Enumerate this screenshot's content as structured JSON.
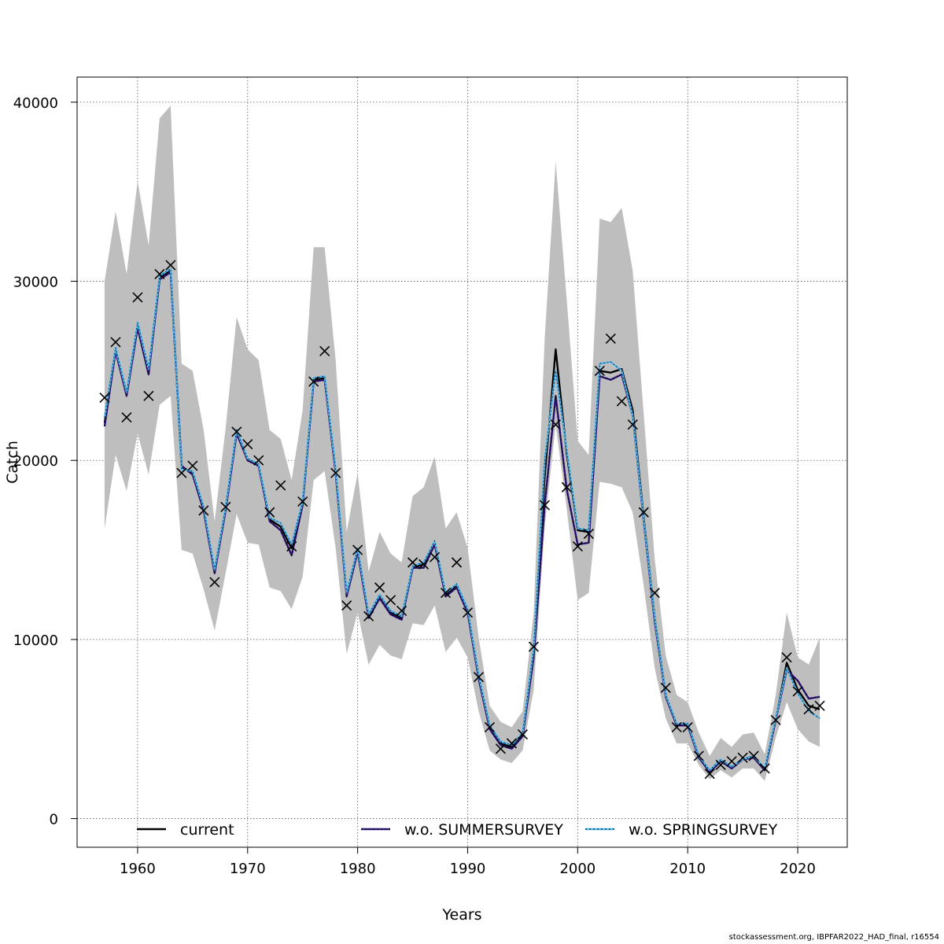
{
  "chart_data": {
    "type": "line",
    "xlabel": "Years",
    "ylabel": "Catch",
    "xlim": [
      1954.5,
      2024.5
    ],
    "ylim": [
      -1600,
      41400
    ],
    "xticks": [
      1960,
      1970,
      1980,
      1990,
      2000,
      2010,
      2020
    ],
    "yticks": [
      0,
      10000,
      20000,
      30000,
      40000
    ],
    "grid": true,
    "legend_position": "bottom",
    "x": [
      1957,
      1958,
      1959,
      1960,
      1961,
      1962,
      1963,
      1964,
      1965,
      1966,
      1967,
      1968,
      1969,
      1970,
      1971,
      1972,
      1973,
      1974,
      1975,
      1976,
      1977,
      1978,
      1979,
      1980,
      1981,
      1982,
      1983,
      1984,
      1985,
      1986,
      1987,
      1988,
      1989,
      1990,
      1991,
      1992,
      1993,
      1994,
      1995,
      1996,
      1997,
      1998,
      1999,
      2000,
      2001,
      2002,
      2003,
      2004,
      2005,
      2006,
      2007,
      2008,
      2009,
      2010,
      2011,
      2012,
      2013,
      2014,
      2015,
      2016,
      2017,
      2018,
      2019,
      2020,
      2021,
      2022
    ],
    "band": {
      "upper": [
        30000,
        33900,
        30400,
        35600,
        32000,
        39100,
        39800,
        25400,
        25000,
        21700,
        16600,
        21800,
        28000,
        26200,
        25600,
        21700,
        21200,
        18900,
        22800,
        31900,
        31900,
        25600,
        16000,
        19300,
        13800,
        16000,
        14800,
        14300,
        18000,
        18500,
        20200,
        16200,
        17100,
        15100,
        10100,
        6300,
        5400,
        5100,
        6000,
        11500,
        26800,
        36700,
        29000,
        21100,
        20300,
        33500,
        33300,
        34100,
        30600,
        22600,
        14500,
        9100,
        6900,
        6500,
        4800,
        3500,
        4500,
        4000,
        4700,
        4800,
        3600,
        6900,
        11500,
        9000,
        8600,
        10100
      ],
      "lower": [
        16200,
        20300,
        18300,
        21500,
        19200,
        23100,
        23600,
        15000,
        14800,
        12800,
        10500,
        13700,
        17000,
        15400,
        15300,
        12900,
        12700,
        11700,
        13500,
        18900,
        19400,
        15100,
        9200,
        11500,
        8600,
        9700,
        9100,
        8900,
        10900,
        10800,
        11900,
        9300,
        10100,
        9000,
        6000,
        3800,
        3300,
        3100,
        3800,
        7200,
        16300,
        22000,
        17300,
        12200,
        12600,
        18800,
        18700,
        18500,
        17100,
        13000,
        8400,
        5600,
        4200,
        4200,
        3000,
        2200,
        2700,
        2300,
        2800,
        2800,
        2100,
        4500,
        6500,
        5000,
        4300,
        4000
      ]
    },
    "series": [
      {
        "name": "current",
        "color": "#000000",
        "values": [
          22100,
          26200,
          23700,
          27500,
          24900,
          30200,
          30600,
          19600,
          19300,
          17300,
          13800,
          17300,
          21600,
          20000,
          19700,
          16700,
          16300,
          15100,
          17600,
          24500,
          24600,
          19400,
          12500,
          15000,
          11300,
          12400,
          11500,
          11200,
          14000,
          14200,
          15400,
          12500,
          13000,
          11600,
          7900,
          5100,
          4200,
          4000,
          4700,
          9300,
          19100,
          26200,
          20400,
          16100,
          16000,
          25000,
          24900,
          25100,
          22800,
          16800,
          11200,
          6900,
          5200,
          5300,
          3500,
          2600,
          3200,
          2900,
          3300,
          3500,
          2700,
          5500,
          8700,
          7200,
          6300,
          6100
        ]
      },
      {
        "name": "w.o. SUMMERSURVEY",
        "color": "#30127a",
        "values": [
          21900,
          26100,
          23600,
          27400,
          24800,
          30100,
          30500,
          19700,
          19200,
          17200,
          13700,
          17200,
          21500,
          20000,
          19700,
          16600,
          16100,
          14700,
          17500,
          24400,
          24500,
          19300,
          12400,
          14900,
          11200,
          12300,
          11400,
          11100,
          14000,
          14000,
          15300,
          12400,
          12900,
          11500,
          7800,
          5000,
          4100,
          3900,
          4600,
          9000,
          17500,
          23600,
          18400,
          15300,
          15400,
          24700,
          24500,
          24800,
          22500,
          16600,
          11000,
          6800,
          5200,
          5200,
          3400,
          2600,
          3200,
          2800,
          3300,
          3400,
          2700,
          5500,
          8300,
          7700,
          6700,
          6800
        ]
      },
      {
        "name": "w.o. SPRINGSURVEY",
        "color": "#4db8f0",
        "values": [
          22400,
          26300,
          23800,
          27700,
          25100,
          30300,
          30700,
          19500,
          19400,
          17400,
          13900,
          17400,
          21700,
          20100,
          19800,
          16800,
          16500,
          15300,
          17700,
          24600,
          24700,
          19500,
          12600,
          15100,
          11400,
          12500,
          11600,
          11300,
          14100,
          14300,
          15500,
          12600,
          13100,
          11700,
          8000,
          5200,
          4300,
          4100,
          4800,
          9500,
          20000,
          25000,
          20600,
          16200,
          16100,
          25400,
          25500,
          25000,
          22500,
          16700,
          11200,
          6900,
          5300,
          5300,
          3500,
          2700,
          3300,
          2900,
          3300,
          3500,
          2800,
          5600,
          8400,
          7000,
          6000,
          5600
        ]
      }
    ],
    "observed": {
      "marker": "x",
      "values": [
        23500,
        26600,
        22400,
        29100,
        23600,
        30400,
        30900,
        19300,
        19700,
        17200,
        13200,
        17400,
        21600,
        20900,
        20000,
        17100,
        18600,
        15200,
        17700,
        24400,
        26100,
        19300,
        11900,
        15000,
        11300,
        12900,
        12200,
        11600,
        14300,
        14200,
        14600,
        12600,
        14300,
        11500,
        7900,
        5100,
        3900,
        4200,
        4700,
        9600,
        17500,
        22000,
        18500,
        15200,
        15900,
        25000,
        26800,
        23300,
        22000,
        17100,
        12600,
        7300,
        5100,
        5100,
        3500,
        2500,
        3000,
        3200,
        3400,
        3500,
        2800,
        5500,
        9000,
        7100,
        6100,
        6300
      ]
    }
  },
  "legend": {
    "items": [
      {
        "label": "current",
        "line_color": "#000000",
        "dot_color": null
      },
      {
        "label": "w.o. SUMMERSURVEY",
        "line_color": "#30127a",
        "dot_color": "#000000"
      },
      {
        "label": "w.o. SPRINGSURVEY",
        "line_color": "#4db8f0",
        "dot_color": "#000000"
      }
    ]
  },
  "footer": {
    "source": "stockassessment.org, IBPFAR2022_HAD_final, r16554"
  }
}
